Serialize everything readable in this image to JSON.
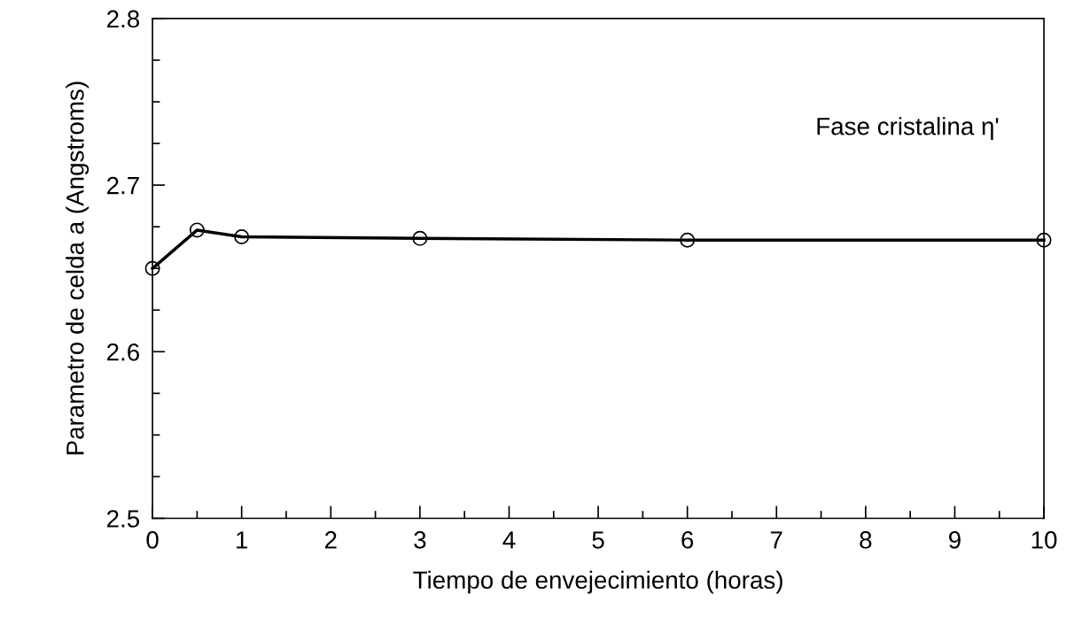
{
  "chart_data": {
    "type": "line",
    "xlabel": "Tiempo de envejecimiento (horas)",
    "ylabel": "Parametro de celda a (Angstroms)",
    "x": [
      0,
      0.5,
      1,
      3,
      6,
      10
    ],
    "series": [
      {
        "color": "#000000",
        "values": [
          2.65,
          2.673,
          2.669,
          2.668,
          2.667,
          2.667
        ]
      }
    ],
    "xlim": [
      0,
      10
    ],
    "xticks": [
      0,
      1,
      2,
      3,
      4,
      5,
      6,
      7,
      8,
      9,
      10
    ],
    "ylim": [
      2.5,
      2.8
    ],
    "yticks": [
      2.5,
      2.6,
      2.7,
      2.8
    ],
    "annotations": [
      "Fase cristalina η'"
    ],
    "marker": "circle",
    "line_style": "solid",
    "grid": false,
    "legend": false
  }
}
